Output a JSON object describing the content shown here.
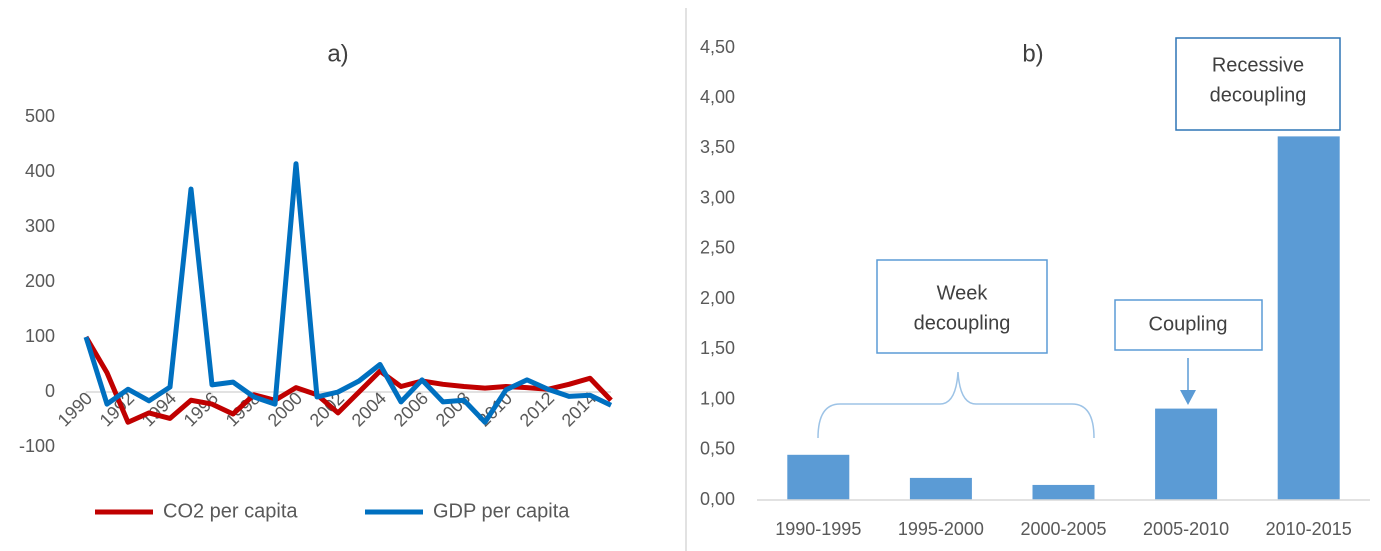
{
  "chart_data": [
    {
      "type": "line",
      "title": "a)",
      "x": [
        1990,
        1991,
        1992,
        1993,
        1994,
        1995,
        1996,
        1997,
        1998,
        1999,
        2000,
        2001,
        2002,
        2003,
        2004,
        2005,
        2006,
        2007,
        2008,
        2009,
        2010,
        2011,
        2012,
        2013,
        2014,
        2015
      ],
      "xlim": [
        1990,
        2015
      ],
      "xticks": [
        1990,
        1992,
        1994,
        1996,
        1998,
        2000,
        2002,
        2004,
        2006,
        2008,
        2010,
        2012,
        2014
      ],
      "ylim": [
        -100,
        500
      ],
      "yticks": [
        -100,
        0,
        100,
        200,
        300,
        400,
        500
      ],
      "legend": "bottom",
      "series": [
        {
          "name": "CO2 per capita",
          "color": "#c00000",
          "values": [
            100,
            35,
            -55,
            -38,
            -48,
            -15,
            -22,
            -40,
            -5,
            -15,
            8,
            -5,
            -38,
            0,
            38,
            10,
            20,
            14,
            10,
            7,
            10,
            8,
            5,
            14,
            25,
            -15
          ]
        },
        {
          "name": "GDP per capita",
          "color": "#0070c0",
          "values": [
            100,
            -22,
            5,
            -16,
            9,
            369,
            13,
            18,
            -9,
            -22,
            415,
            -9,
            0,
            20,
            50,
            -18,
            22,
            -18,
            -15,
            -55,
            4,
            22,
            5,
            -8,
            -6,
            -24
          ]
        }
      ]
    },
    {
      "type": "bar",
      "title": "b)",
      "categories": [
        "1990-1995",
        "1995-2000",
        "2000-2005",
        "2005-2010",
        "2010-2015"
      ],
      "values": [
        0.45,
        0.22,
        0.15,
        0.91,
        3.62
      ],
      "color": "#5b9bd5",
      "ylim": [
        0,
        4.5
      ],
      "yticks": [
        {
          "value": 0,
          "label": "0,00"
        },
        {
          "value": 0.5,
          "label": "0,50"
        },
        {
          "value": 1,
          "label": "1,00"
        },
        {
          "value": 1.5,
          "label": "1,50"
        },
        {
          "value": 2,
          "label": "2,00"
        },
        {
          "value": 2.5,
          "label": "2,50"
        },
        {
          "value": 3,
          "label": "3,00"
        },
        {
          "value": 3.5,
          "label": "3,50"
        },
        {
          "value": 4,
          "label": "4,00"
        },
        {
          "value": 4.5,
          "label": "4,50"
        }
      ],
      "annotations": [
        {
          "lines": [
            "Week",
            "decoupling"
          ]
        },
        {
          "lines": [
            "Coupling"
          ]
        },
        {
          "lines": [
            "Recessive",
            "decoupling"
          ]
        }
      ]
    }
  ]
}
